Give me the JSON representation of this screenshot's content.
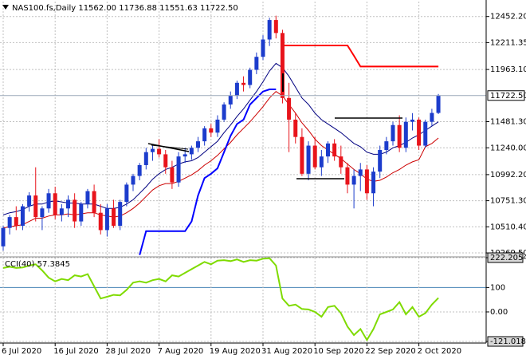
{
  "chart_data": [
    {
      "type": "candlestick",
      "title": "NAS100.fs,Daily  11562.00 11736.88 11551.63 11722.50",
      "x": [
        "6 Jul 2020",
        null,
        null,
        null,
        null,
        null,
        null,
        null,
        "16 Jul 2020",
        null,
        null,
        null,
        null,
        null,
        null,
        null,
        "28 Jul 2020",
        null,
        null,
        null,
        null,
        null,
        null,
        null,
        "7 Aug 2020",
        null,
        null,
        null,
        null,
        null,
        null,
        null,
        "19 Aug 2020",
        null,
        null,
        null,
        null,
        null,
        null,
        null,
        "31 Aug 2020",
        null,
        null,
        null,
        null,
        null,
        null,
        null,
        "10 Sep 2020",
        null,
        null,
        null,
        null,
        null,
        null,
        null,
        "22 Sep 2020",
        null,
        null,
        null,
        null,
        null,
        null,
        null,
        "2 Oct 2020",
        null,
        null,
        null
      ],
      "open": [
        10330,
        10500,
        10600,
        10520,
        10700,
        10800,
        10600,
        10680,
        10820,
        10620,
        10680,
        10760,
        10560,
        10720,
        10840,
        10640,
        10480,
        10680,
        10520,
        10740,
        10900,
        10980,
        11080,
        11200,
        11230,
        11180,
        11060,
        10920,
        11160,
        11180,
        11240,
        11300,
        11420,
        11380,
        11500,
        11640,
        11720,
        11840,
        11820,
        11960,
        12080,
        12240,
        12420,
        12300,
        11700,
        11500,
        11340,
        11000,
        11260,
        11060,
        11160,
        11280,
        11160,
        11060,
        10900,
        10980,
        11040,
        10820,
        11020,
        11220,
        11300,
        11450,
        11240,
        11480,
        11500,
        11260,
        11480,
        11562
      ],
      "high": [
        10520,
        10620,
        10700,
        10720,
        10830,
        11060,
        10700,
        10860,
        10880,
        10720,
        10800,
        10820,
        10740,
        10860,
        10900,
        10720,
        10720,
        10760,
        10760,
        10920,
        11000,
        11100,
        11240,
        11260,
        11320,
        11220,
        11120,
        11200,
        11240,
        11260,
        11340,
        11440,
        11460,
        11540,
        11660,
        11760,
        11860,
        11900,
        11980,
        12120,
        12280,
        12440,
        12460,
        12330,
        11840,
        11560,
        11420,
        11300,
        11340,
        11220,
        11300,
        11320,
        11260,
        11100,
        11040,
        11100,
        11080,
        11060,
        11260,
        11340,
        11480,
        11540,
        11520,
        11560,
        11520,
        11500,
        11600,
        11736.88
      ],
      "low": [
        10290,
        10440,
        10480,
        10480,
        10650,
        10560,
        10480,
        10640,
        10580,
        10560,
        10600,
        10500,
        10520,
        10680,
        10600,
        10440,
        10420,
        10500,
        10480,
        10700,
        10840,
        10940,
        11040,
        11120,
        11150,
        11000,
        10860,
        10880,
        11100,
        11130,
        11200,
        11260,
        11340,
        11340,
        11480,
        11600,
        11690,
        11760,
        11790,
        11920,
        12050,
        12180,
        12250,
        11650,
        11200,
        11280,
        10980,
        10940,
        11040,
        10980,
        11100,
        11120,
        11000,
        10820,
        10680,
        10840,
        10760,
        10700,
        10960,
        11180,
        11260,
        11200,
        11200,
        11400,
        11220,
        11240,
        11440,
        11551.63
      ],
      "close": [
        10500,
        10600,
        10520,
        10700,
        10800,
        10600,
        10680,
        10820,
        10620,
        10680,
        10760,
        10560,
        10720,
        10840,
        10640,
        10480,
        10680,
        10520,
        10740,
        10900,
        10980,
        11080,
        11200,
        11230,
        11180,
        11060,
        10920,
        11160,
        11180,
        11240,
        11300,
        11420,
        11380,
        11500,
        11640,
        11720,
        11840,
        11820,
        11960,
        12080,
        12240,
        12420,
        12300,
        11700,
        11500,
        11340,
        11000,
        11260,
        11060,
        11160,
        11280,
        11160,
        11060,
        10900,
        10980,
        11040,
        10820,
        11020,
        11220,
        11300,
        11450,
        11240,
        11480,
        11500,
        11260,
        11480,
        11562,
        11722.5
      ],
      "up_color": "#1c3ccc",
      "down_color": "#e8141b",
      "lines": [
        {
          "color": "#000080",
          "width": 1,
          "values": [
            10620,
            10640,
            10650,
            10670,
            10700,
            10720,
            10720,
            10740,
            10750,
            10740,
            10730,
            10730,
            10720,
            10720,
            10720,
            10700,
            10680,
            10680,
            10690,
            10720,
            10760,
            10820,
            10880,
            10950,
            11000,
            11040,
            11060,
            11090,
            11110,
            11120,
            11150,
            11200,
            11250,
            11300,
            11380,
            11450,
            11530,
            11600,
            11680,
            11760,
            11850,
            11950,
            12020,
            11980,
            11900,
            11800,
            11700,
            11640,
            11560,
            11500,
            11460,
            11420,
            11380,
            11330,
            11280,
            11250,
            11200,
            11180,
            11180,
            11200,
            11240,
            11260,
            11290,
            11330,
            11360,
            11400,
            11440,
            11480
          ]
        },
        {
          "color": "#cc0000",
          "width": 1,
          "values": [
            10500,
            10510,
            10520,
            10530,
            10560,
            10590,
            10590,
            10610,
            10620,
            10620,
            10630,
            10620,
            10630,
            10640,
            10640,
            10620,
            10610,
            10600,
            10610,
            10640,
            10680,
            10730,
            10790,
            10850,
            10890,
            10910,
            10910,
            10930,
            10960,
            10990,
            11030,
            11080,
            11120,
            11170,
            11230,
            11290,
            11360,
            11420,
            11480,
            11550,
            11620,
            11700,
            11760,
            11720,
            11640,
            11560,
            11470,
            11400,
            11320,
            11260,
            11220,
            11180,
            11140,
            11090,
            11040,
            11000,
            10950,
            10930,
            10940,
            10970,
            11010,
            11040,
            11080,
            11110,
            11130,
            11250,
            11280,
            11330
          ]
        },
        {
          "color": "#0000ff",
          "width": 2,
          "values": [
            null,
            null,
            null,
            null,
            null,
            null,
            null,
            null,
            null,
            null,
            null,
            null,
            null,
            null,
            null,
            null,
            null,
            null,
            null,
            null,
            null,
            10250,
            10470,
            10470,
            10470,
            10470,
            10470,
            10470,
            10470,
            10560,
            10800,
            10960,
            11000,
            11050,
            11200,
            11350,
            11460,
            11500,
            11640,
            11700,
            11760,
            11780,
            11780,
            null,
            null,
            null,
            null,
            null,
            null,
            null,
            null,
            null,
            null,
            null,
            null,
            null,
            null,
            null,
            null,
            null,
            null,
            null,
            null,
            null,
            null,
            null,
            null,
            null
          ]
        },
        {
          "color": "#ff0000",
          "width": 2,
          "values": [
            null,
            null,
            null,
            null,
            null,
            null,
            null,
            null,
            null,
            null,
            null,
            null,
            null,
            null,
            null,
            null,
            null,
            null,
            null,
            null,
            null,
            null,
            null,
            null,
            null,
            null,
            null,
            null,
            null,
            null,
            null,
            null,
            null,
            null,
            null,
            null,
            null,
            null,
            null,
            null,
            null,
            null,
            null,
            12185,
            12185,
            12185,
            12185,
            12185,
            12185,
            12185,
            12185,
            12185,
            12185,
            12185,
            12090,
            11990,
            11990,
            11990,
            11990,
            11990,
            11990,
            11990,
            11990,
            11990,
            11990,
            11990,
            11990,
            11990
          ]
        }
      ],
      "last_price": {
        "value": 11722.5,
        "label": "11722.50"
      },
      "ylim": [
        10240,
        12590
      ],
      "yticks": [
        {
          "value": 12452.2,
          "label": "12452.20"
        },
        12211.35,
        {
          "value": 11963.1,
          "label": "11963.10"
        },
        {
          "value": 11481.3,
          "label": "11481.30"
        },
        {
          "value": 11240,
          "label": "11240.00"
        },
        {
          "value": 10992.2,
          "label": "10992.20"
        },
        {
          "value": 10751.3,
          "label": "10751.30"
        },
        {
          "value": 10510.4,
          "label": "10510.40"
        },
        {
          "value": 10269.5,
          "label": "10269.50"
        }
      ],
      "grid": true
    },
    {
      "type": "line",
      "title": "CCI(40) 57.3845",
      "color": "#7fdb00",
      "values": [
        180,
        185,
        180,
        182,
        190,
        195,
        170,
        140,
        125,
        135,
        130,
        150,
        145,
        155,
        105,
        55,
        62,
        70,
        68,
        90,
        120,
        125,
        120,
        130,
        135,
        125,
        150,
        145,
        160,
        175,
        190,
        205,
        195,
        210,
        212,
        208,
        215,
        205,
        212,
        210,
        218,
        220,
        190,
        55,
        25,
        30,
        12,
        10,
        0,
        -20,
        20,
        25,
        -5,
        -60,
        -95,
        -70,
        -115,
        -70,
        -10,
        0,
        10,
        40,
        -10,
        20,
        -20,
        -5,
        30,
        57.3845
      ],
      "ylim": [
        -121.0189,
        222.2054
      ],
      "yticks": [
        222.2054,
        100,
        {
          "value": 0,
          "label": "0.00"
        },
        -121.0189
      ],
      "grid": true
    }
  ]
}
